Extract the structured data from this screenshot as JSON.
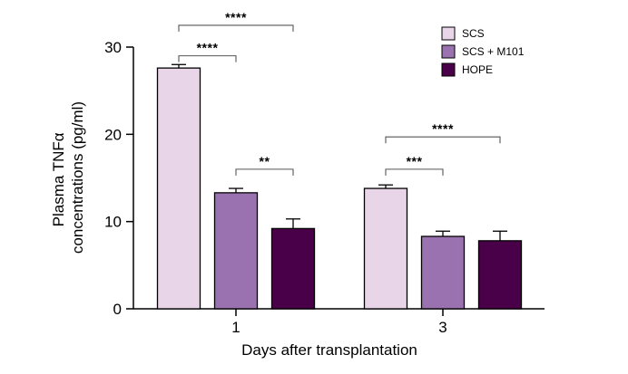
{
  "chart_data": {
    "type": "bar",
    "title": "",
    "xlabel": "Days after transplantation",
    "ylabel_lines": [
      "Plasma TNFα",
      "concentrations (pg/ml)"
    ],
    "categories": [
      "1",
      "3"
    ],
    "ylim": [
      0,
      30
    ],
    "yticks": [
      0,
      10,
      20,
      30
    ],
    "grid": false,
    "legend_position": "top-right",
    "series": [
      {
        "name": "SCS",
        "color": "#e8d5e8",
        "values": [
          27.6,
          13.8
        ],
        "errors": [
          0.4,
          0.4
        ]
      },
      {
        "name": "SCS + M101",
        "color": "#9b72b0",
        "values": [
          13.3,
          8.3
        ],
        "errors": [
          0.5,
          0.6
        ]
      },
      {
        "name": "HOPE",
        "color": "#4a0048",
        "values": [
          9.2,
          7.8
        ],
        "errors": [
          1.1,
          1.1
        ]
      }
    ],
    "significance": [
      {
        "category": 0,
        "from_series": 0,
        "to_series": 2,
        "label": "****",
        "y": 32.5
      },
      {
        "category": 0,
        "from_series": 0,
        "to_series": 1,
        "label": "****",
        "y": 29.0
      },
      {
        "category": 0,
        "from_series": 1,
        "to_series": 2,
        "label": "**",
        "y": 16.0
      },
      {
        "category": 1,
        "from_series": 0,
        "to_series": 2,
        "label": "****",
        "y": 19.7
      },
      {
        "category": 1,
        "from_series": 0,
        "to_series": 1,
        "label": "***",
        "y": 16.0
      }
    ]
  }
}
